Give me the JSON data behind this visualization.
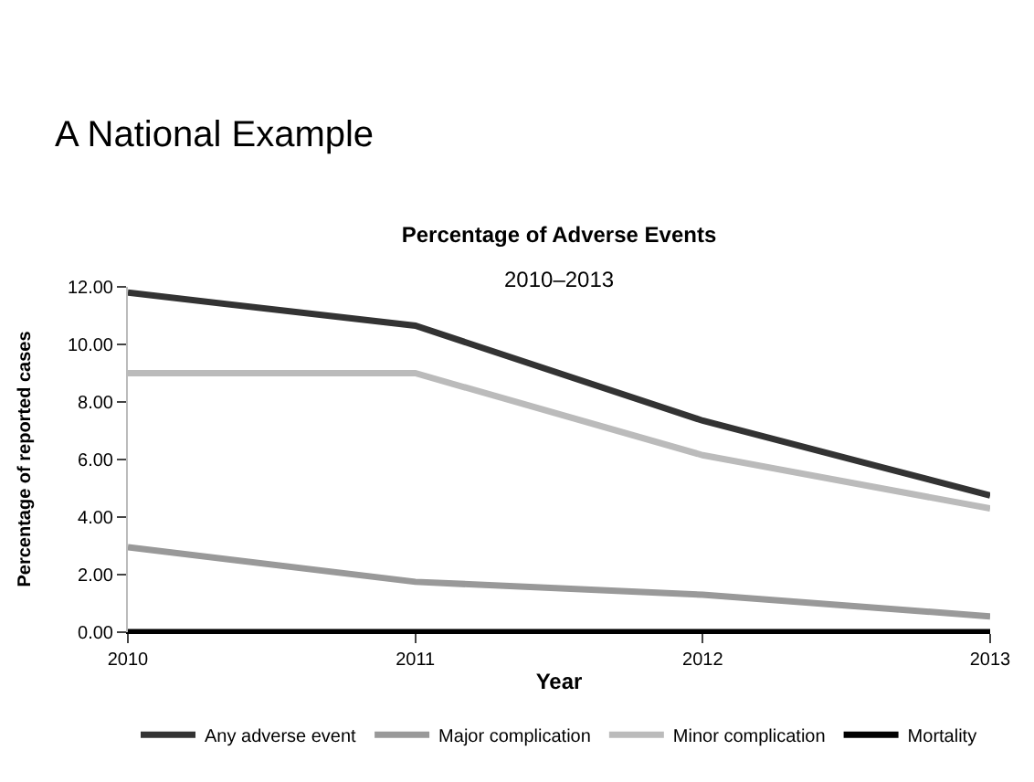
{
  "chart_data": {
    "type": "line",
    "title": "Percentage of Adverse Events",
    "subtitle": "2010–2013",
    "xlabel": "Year",
    "ylabel": "Percentage of reported cases",
    "annotations": [
      "A National Example"
    ],
    "categories": [
      "2010",
      "2011",
      "2012",
      "2013"
    ],
    "series": [
      {
        "name": "Any adverse event",
        "color": "#333333",
        "values": [
          11.8,
          10.65,
          7.35,
          4.75
        ]
      },
      {
        "name": "Major complication",
        "color": "#999999",
        "values": [
          2.95,
          1.75,
          1.3,
          0.55
        ]
      },
      {
        "name": "Minor complication",
        "color": "#bbbbbb",
        "values": [
          9.0,
          9.0,
          6.15,
          4.3
        ]
      },
      {
        "name": "Mortality",
        "color": "#000000",
        "values": [
          0,
          0,
          0,
          0
        ]
      }
    ],
    "ylim": [
      0,
      12
    ],
    "yticks": [
      {
        "value": 0,
        "label": "0.00"
      },
      {
        "value": 2,
        "label": "2.00"
      },
      {
        "value": 4,
        "label": "4.00"
      },
      {
        "value": 6,
        "label": "6.00"
      },
      {
        "value": 8,
        "label": "8.00"
      },
      {
        "value": 10,
        "label": "10.00"
      },
      {
        "value": 12,
        "label": "12.00"
      }
    ],
    "legend": "bottom",
    "marker": "none",
    "line_style": "solid"
  }
}
